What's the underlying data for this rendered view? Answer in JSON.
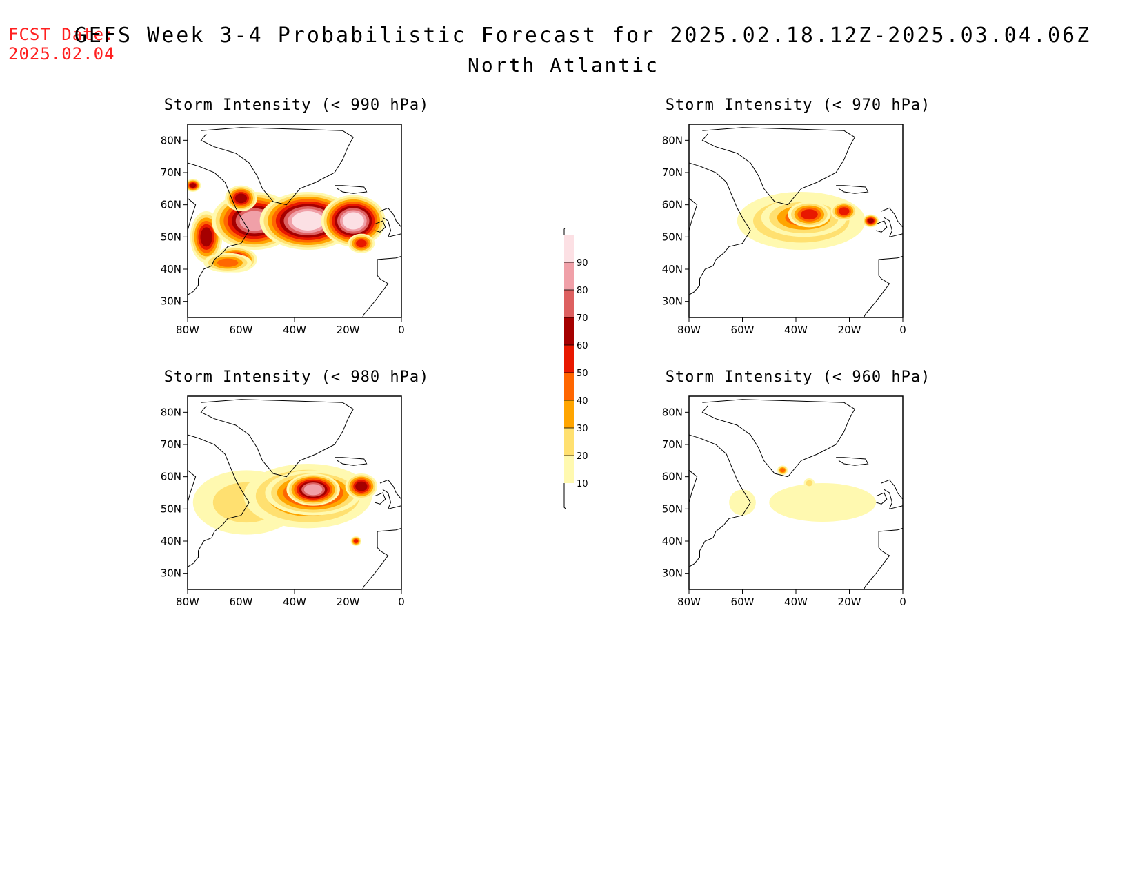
{
  "header": {
    "fcst_label": "FCST Date:",
    "fcst_date": "2025.02.04",
    "title": "GEFS Week 3-4 Probabilistic Forecast for 2025.02.18.12Z-2025.03.04.06Z",
    "region": "North Atlantic"
  },
  "axes": {
    "x_ticks": [
      "80W",
      "60W",
      "40W",
      "20W",
      "0"
    ],
    "y_ticks": [
      "80N",
      "70N",
      "60N",
      "50N",
      "40N",
      "30N"
    ],
    "lon_range": [
      -80,
      0
    ],
    "lat_range": [
      25,
      85
    ]
  },
  "colorbar": {
    "levels": [
      10,
      20,
      30,
      40,
      50,
      60,
      70,
      80,
      90
    ],
    "labels": [
      "10",
      "20",
      "30",
      "40",
      "50",
      "60",
      "70",
      "80",
      "90"
    ],
    "colors": [
      "#fff9b0",
      "#ffe070",
      "#ffa500",
      "#ff6600",
      "#e81800",
      "#a50000",
      "#dd6060",
      "#f0a0a8",
      "#fce0e4"
    ]
  },
  "panels": [
    {
      "title": "Storm Intensity (< 990 hPa)",
      "blobs": [
        {
          "lon": -73,
          "lat": 50,
          "rx": 6,
          "ry": 8,
          "level": 5
        },
        {
          "lon": -62,
          "lat": 43,
          "rx": 8,
          "ry": 4,
          "level": 5
        },
        {
          "lon": -55,
          "lat": 55,
          "rx": 16,
          "ry": 9,
          "level": 7
        },
        {
          "lon": -35,
          "lat": 55,
          "rx": 18,
          "ry": 9,
          "level": 8
        },
        {
          "lon": -18,
          "lat": 55,
          "rx": 12,
          "ry": 8,
          "level": 8
        },
        {
          "lon": -60,
          "lat": 62,
          "rx": 6,
          "ry": 4,
          "level": 5
        },
        {
          "lon": -78,
          "lat": 66,
          "rx": 3,
          "ry": 2,
          "level": 5
        },
        {
          "lon": -65,
          "lat": 42,
          "rx": 9,
          "ry": 3,
          "level": 3
        },
        {
          "lon": -15,
          "lat": 48,
          "rx": 5,
          "ry": 3,
          "level": 4
        }
      ]
    },
    {
      "title": "Storm Intensity (< 970 hPa)",
      "blobs": [
        {
          "lon": -38,
          "lat": 55,
          "rx": 24,
          "ry": 9,
          "level": 2
        },
        {
          "lon": -37,
          "lat": 56,
          "rx": 16,
          "ry": 6,
          "level": 3
        },
        {
          "lon": -35,
          "lat": 57,
          "rx": 8,
          "ry": 4,
          "level": 4
        },
        {
          "lon": -22,
          "lat": 58,
          "rx": 5,
          "ry": 3,
          "level": 4
        },
        {
          "lon": -12,
          "lat": 55,
          "rx": 3,
          "ry": 2,
          "level": 5
        }
      ]
    },
    {
      "title": "Storm Intensity (< 980 hPa)",
      "blobs": [
        {
          "lon": -58,
          "lat": 52,
          "rx": 20,
          "ry": 10,
          "level": 1
        },
        {
          "lon": -35,
          "lat": 54,
          "rx": 24,
          "ry": 10,
          "level": 3
        },
        {
          "lon": -33,
          "lat": 55,
          "rx": 18,
          "ry": 7,
          "level": 5
        },
        {
          "lon": -33,
          "lat": 56,
          "rx": 10,
          "ry": 5,
          "level": 7
        },
        {
          "lon": -15,
          "lat": 57,
          "rx": 6,
          "ry": 4,
          "level": 5
        },
        {
          "lon": -17,
          "lat": 40,
          "rx": 2,
          "ry": 1.5,
          "level": 4
        }
      ]
    },
    {
      "title": "Storm Intensity (< 960 hPa)",
      "blobs": [
        {
          "lon": -30,
          "lat": 52,
          "rx": 20,
          "ry": 6,
          "level": 0
        },
        {
          "lon": -45,
          "lat": 62,
          "rx": 2,
          "ry": 1.5,
          "level": 3
        },
        {
          "lon": -35,
          "lat": 58,
          "rx": 2,
          "ry": 1.5,
          "level": 1
        },
        {
          "lon": -60,
          "lat": 52,
          "rx": 5,
          "ry": 4,
          "level": 0
        }
      ]
    }
  ]
}
